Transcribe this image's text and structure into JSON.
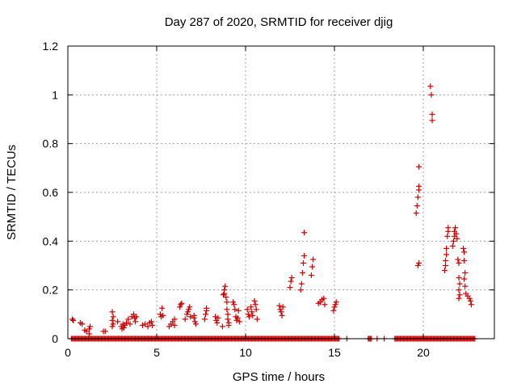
{
  "chart_data": {
    "type": "scatter",
    "title": "Day 287 of 2020, SRMTID for receiver djig",
    "xlabel": "GPS time / hours",
    "ylabel": "SRMTID / TECUs",
    "xlim": [
      0,
      24
    ],
    "ylim": [
      0,
      1.2
    ],
    "xticks": [
      0,
      5,
      10,
      15,
      20
    ],
    "yticks": [
      0,
      0.2,
      0.4,
      0.6,
      0.8,
      1,
      1.2
    ],
    "xtick_labels": [
      "0",
      "5",
      "10",
      "15",
      "20"
    ],
    "ytick_labels": [
      "0",
      "0.2",
      "0.4",
      "0.6",
      "0.8",
      "1",
      "1.2"
    ],
    "grid": true,
    "marker": "+",
    "color": "#cc0000",
    "series": [
      {
        "name": "SRMTID",
        "points": [
          [
            0.25,
            0.08
          ],
          [
            0.3,
            0.075
          ],
          [
            0.7,
            0.065
          ],
          [
            0.8,
            0.06
          ],
          [
            0.95,
            0.035
          ],
          [
            1.05,
            0.03
          ],
          [
            1.2,
            0.04
          ],
          [
            1.25,
            0.05
          ],
          [
            1.2,
            0.02
          ],
          [
            2.0,
            0.03
          ],
          [
            2.1,
            0.03
          ],
          [
            2.5,
            0.11
          ],
          [
            2.55,
            0.09
          ],
          [
            2.5,
            0.075
          ],
          [
            2.55,
            0.06
          ],
          [
            2.5,
            0.05
          ],
          [
            2.8,
            0.07
          ],
          [
            3.0,
            0.05
          ],
          [
            3.05,
            0.04
          ],
          [
            3.1,
            0.06
          ],
          [
            3.15,
            0.045
          ],
          [
            3.2,
            0.055
          ],
          [
            3.3,
            0.065
          ],
          [
            3.4,
            0.08
          ],
          [
            3.5,
            0.06
          ],
          [
            3.6,
            0.09
          ],
          [
            3.7,
            0.1
          ],
          [
            3.75,
            0.085
          ],
          [
            3.8,
            0.07
          ],
          [
            3.85,
            0.09
          ],
          [
            4.2,
            0.055
          ],
          [
            4.35,
            0.06
          ],
          [
            4.5,
            0.05
          ],
          [
            4.6,
            0.065
          ],
          [
            4.7,
            0.07
          ],
          [
            4.75,
            0.055
          ],
          [
            5.2,
            0.1
          ],
          [
            5.25,
            0.09
          ],
          [
            5.3,
            0.125
          ],
          [
            5.35,
            0.095
          ],
          [
            5.7,
            0.05
          ],
          [
            5.8,
            0.06
          ],
          [
            5.9,
            0.07
          ],
          [
            6.0,
            0.08
          ],
          [
            6.0,
            0.055
          ],
          [
            6.3,
            0.13
          ],
          [
            6.35,
            0.14
          ],
          [
            6.4,
            0.145
          ],
          [
            6.6,
            0.08
          ],
          [
            6.7,
            0.1
          ],
          [
            6.75,
            0.11
          ],
          [
            6.8,
            0.12
          ],
          [
            6.85,
            0.13
          ],
          [
            6.9,
            0.09
          ],
          [
            7.1,
            0.085
          ],
          [
            7.15,
            0.07
          ],
          [
            7.2,
            0.06
          ],
          [
            7.1,
            0.095
          ],
          [
            7.7,
            0.08
          ],
          [
            7.75,
            0.1
          ],
          [
            7.8,
            0.115
          ],
          [
            7.8,
            0.125
          ],
          [
            8.3,
            0.09
          ],
          [
            8.35,
            0.075
          ],
          [
            8.4,
            0.065
          ],
          [
            8.45,
            0.085
          ],
          [
            8.7,
            0.05
          ],
          [
            8.75,
            0.18
          ],
          [
            8.8,
            0.2
          ],
          [
            8.85,
            0.215
          ],
          [
            8.8,
            0.185
          ],
          [
            8.9,
            0.17
          ],
          [
            8.95,
            0.15
          ],
          [
            8.95,
            0.12
          ],
          [
            9.0,
            0.1
          ],
          [
            9.0,
            0.08
          ],
          [
            9.05,
            0.055
          ],
          [
            9.05,
            0.065
          ],
          [
            9.3,
            0.15
          ],
          [
            9.35,
            0.14
          ],
          [
            9.4,
            0.12
          ],
          [
            9.45,
            0.09
          ],
          [
            9.5,
            0.075
          ],
          [
            9.55,
            0.085
          ],
          [
            9.6,
            0.115
          ],
          [
            9.65,
            0.07
          ],
          [
            10.1,
            0.12
          ],
          [
            10.15,
            0.1
          ],
          [
            10.2,
            0.09
          ],
          [
            10.3,
            0.13
          ],
          [
            10.35,
            0.11
          ],
          [
            10.4,
            0.095
          ],
          [
            10.5,
            0.155
          ],
          [
            10.55,
            0.14
          ],
          [
            10.6,
            0.12
          ],
          [
            10.65,
            0.08
          ],
          [
            11.9,
            0.135
          ],
          [
            11.95,
            0.12
          ],
          [
            12.0,
            0.11
          ],
          [
            12.05,
            0.095
          ],
          [
            12.1,
            0.13
          ],
          [
            12.5,
            0.21
          ],
          [
            12.55,
            0.235
          ],
          [
            12.6,
            0.25
          ],
          [
            13.1,
            0.2
          ],
          [
            13.15,
            0.225
          ],
          [
            13.2,
            0.27
          ],
          [
            13.25,
            0.31
          ],
          [
            13.3,
            0.34
          ],
          [
            13.3,
            0.435
          ],
          [
            13.7,
            0.26
          ],
          [
            13.75,
            0.295
          ],
          [
            13.8,
            0.325
          ],
          [
            14.1,
            0.145
          ],
          [
            14.2,
            0.15
          ],
          [
            14.3,
            0.16
          ],
          [
            14.4,
            0.165
          ],
          [
            14.45,
            0.14
          ],
          [
            14.95,
            0.115
          ],
          [
            15.0,
            0.13
          ],
          [
            15.05,
            0.14
          ],
          [
            15.1,
            0.15
          ],
          [
            19.6,
            0.515
          ],
          [
            19.65,
            0.545
          ],
          [
            19.7,
            0.58
          ],
          [
            19.75,
            0.61
          ],
          [
            19.75,
            0.625
          ],
          [
            19.75,
            0.705
          ],
          [
            19.7,
            0.3
          ],
          [
            19.75,
            0.31
          ],
          [
            20.4,
            1.035
          ],
          [
            20.45,
            1.0
          ],
          [
            20.5,
            0.92
          ],
          [
            20.5,
            0.895
          ],
          [
            21.2,
            0.28
          ],
          [
            21.25,
            0.3
          ],
          [
            21.25,
            0.32
          ],
          [
            21.3,
            0.345
          ],
          [
            21.3,
            0.37
          ],
          [
            21.35,
            0.42
          ],
          [
            21.4,
            0.44
          ],
          [
            21.4,
            0.455
          ],
          [
            21.65,
            0.38
          ],
          [
            21.7,
            0.4
          ],
          [
            21.75,
            0.42
          ],
          [
            21.75,
            0.44
          ],
          [
            21.8,
            0.455
          ],
          [
            21.85,
            0.43
          ],
          [
            21.9,
            0.41
          ],
          [
            21.95,
            0.325
          ],
          [
            22.0,
            0.31
          ],
          [
            22.0,
            0.25
          ],
          [
            22.05,
            0.225
          ],
          [
            22.0,
            0.2
          ],
          [
            22.05,
            0.18
          ],
          [
            22.0,
            0.165
          ],
          [
            22.25,
            0.37
          ],
          [
            22.3,
            0.355
          ],
          [
            22.3,
            0.32
          ],
          [
            22.35,
            0.27
          ],
          [
            22.3,
            0.245
          ],
          [
            22.35,
            0.215
          ],
          [
            22.4,
            0.185
          ],
          [
            22.5,
            0.175
          ],
          [
            22.6,
            0.165
          ],
          [
            22.65,
            0.155
          ],
          [
            22.7,
            0.14
          ]
        ]
      }
    ],
    "zero_band": {
      "value": 0,
      "x_ranges": [
        [
          0.2,
          15.3
        ],
        [
          16.9,
          17.1
        ],
        [
          18.4,
          22.9
        ]
      ],
      "extra_x": [
        15.7,
        17.4,
        17.8
      ],
      "step": 0.06
    }
  }
}
